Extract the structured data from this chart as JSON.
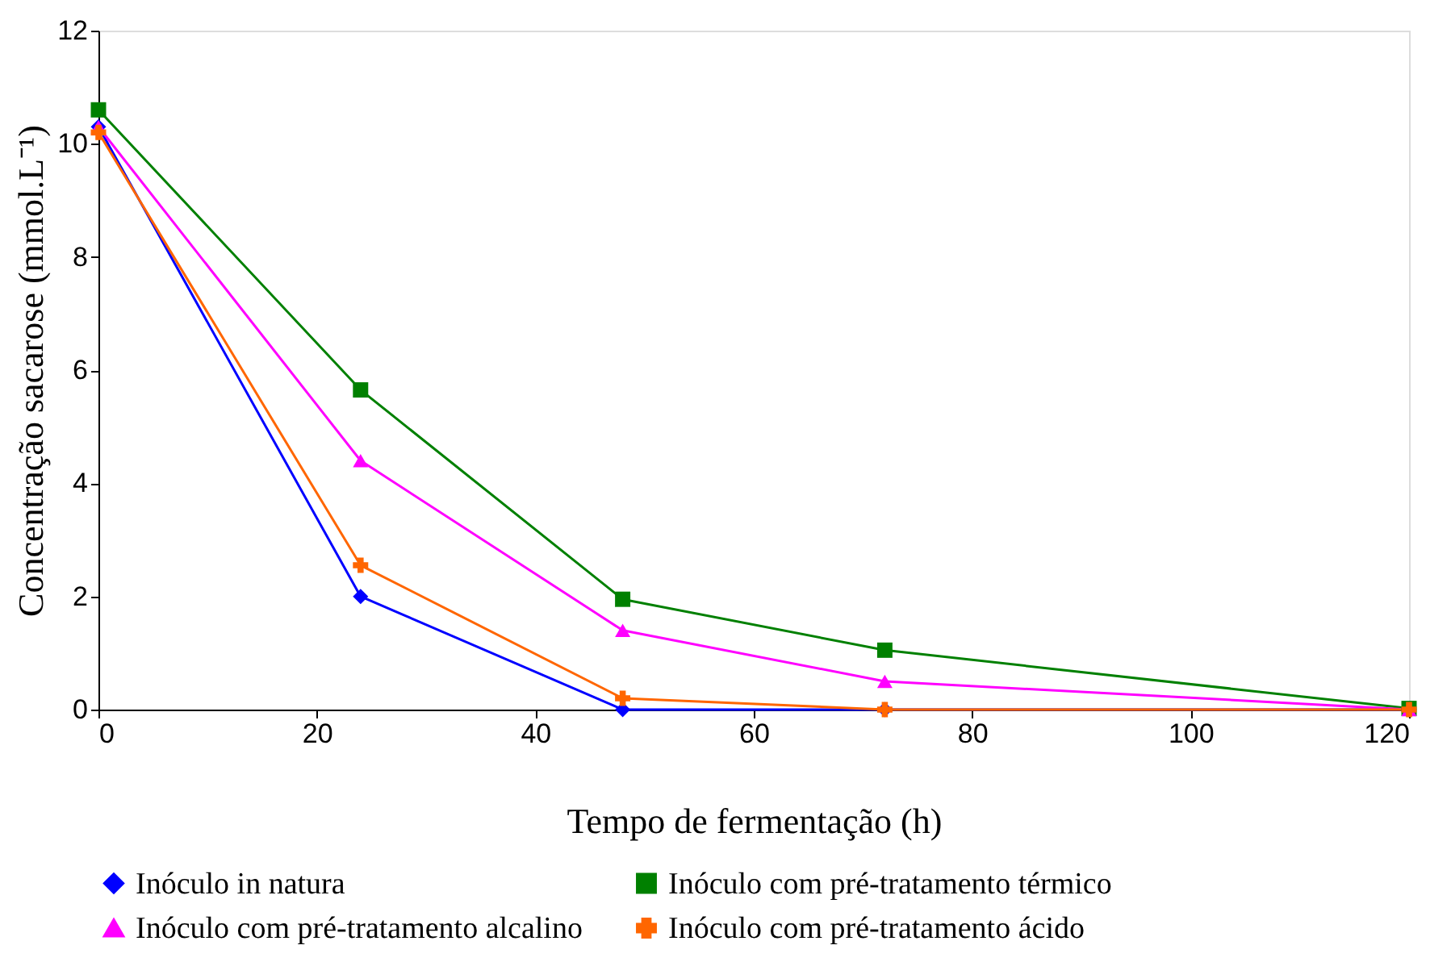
{
  "chart_data": {
    "type": "line",
    "xlabel": "Tempo de fermentação (h)",
    "ylabel": "Concentração sacarose (mmol.L⁻¹)",
    "x": [
      0,
      24,
      48,
      72,
      120
    ],
    "series": [
      {
        "name": "Inóculo in natura",
        "color": "#0000ff",
        "marker": "diamond",
        "values": [
          10.3,
          2.0,
          0,
          0,
          0
        ]
      },
      {
        "name": "Inóculo com pré-tratamento térmico",
        "color": "#008000",
        "marker": "square",
        "values": [
          10.6,
          5.65,
          1.95,
          1.05,
          0.02
        ]
      },
      {
        "name": "Inóculo com pré-tratamento alcalino",
        "color": "#ff00ff",
        "marker": "triangle",
        "values": [
          10.3,
          4.4,
          1.4,
          0.5,
          0
        ]
      },
      {
        "name": "Inóculo com pré-tratamento ácido",
        "color": "#ff6600",
        "marker": "cross",
        "values": [
          10.2,
          2.55,
          0.2,
          0,
          0
        ]
      }
    ],
    "xlim": [
      0,
      120
    ],
    "xticks": [
      0,
      20,
      40,
      60,
      80,
      100,
      120
    ],
    "ylim": [
      0,
      12
    ],
    "yticks": [
      0,
      2,
      4,
      6,
      8,
      10,
      12
    ],
    "grid": false,
    "legend": "bottom",
    "line_style": "solid"
  }
}
